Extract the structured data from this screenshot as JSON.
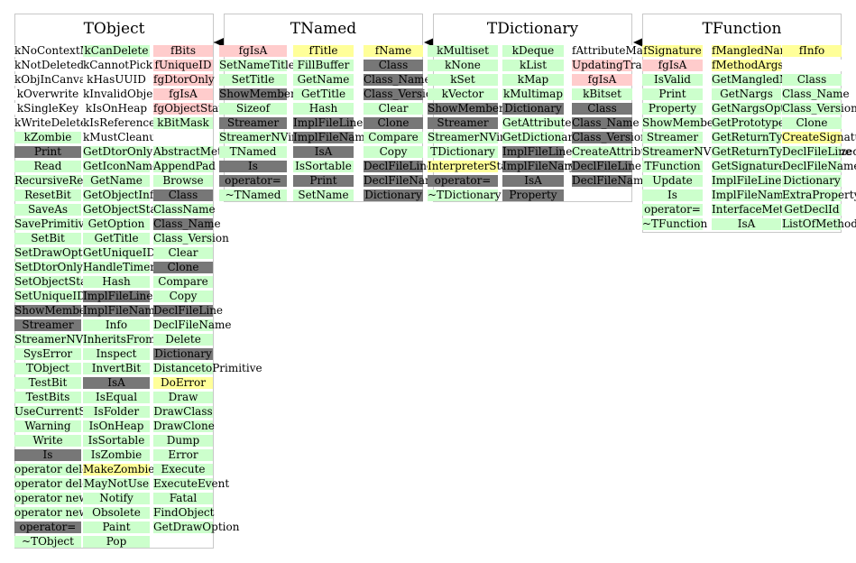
{
  "palette": {
    "method": "#ccffcc",
    "static": "#777777",
    "member": "#ffcccc",
    "pointer": "#ffff99"
  },
  "classes": [
    {
      "title": "TObject",
      "columns": [
        {
          "items": [
            [
              "kNoContextMenu",
              "w"
            ],
            [
              "kNotDeleted",
              "w"
            ],
            [
              "kObjInCanvas",
              "w"
            ],
            [
              "kOverwrite",
              "w"
            ],
            [
              "kSingleKey",
              "w"
            ],
            [
              "kWriteDelete",
              "w"
            ],
            [
              "kZombie",
              "g"
            ],
            [
              "Print",
              "d"
            ],
            [
              "Read",
              "g"
            ],
            [
              "RecursiveRemove",
              "g"
            ],
            [
              "ResetBit",
              "g"
            ],
            [
              "SaveAs",
              "g"
            ],
            [
              "SavePrimitive",
              "g"
            ],
            [
              "SetBit",
              "g"
            ],
            [
              "SetDrawOption",
              "g"
            ],
            [
              "SetDtorOnly",
              "g"
            ],
            [
              "SetObjectStat",
              "g"
            ],
            [
              "SetUniqueID",
              "g"
            ],
            [
              "ShowMembers",
              "d"
            ],
            [
              "Streamer",
              "d"
            ],
            [
              "StreamerNVirtual",
              "g"
            ],
            [
              "SysError",
              "g"
            ],
            [
              "TObject",
              "g"
            ],
            [
              "TestBit",
              "g"
            ],
            [
              "TestBits",
              "g"
            ],
            [
              "UseCurrentStyle",
              "g"
            ],
            [
              "Warning",
              "g"
            ],
            [
              "Write",
              "g"
            ],
            [
              "Is",
              "d"
            ],
            [
              "operator delete",
              "g"
            ],
            [
              "operator delete[]",
              "g"
            ],
            [
              "operator new",
              "g"
            ],
            [
              "operator new[]",
              "g"
            ],
            [
              "operator=",
              "d"
            ],
            [
              "~TObject",
              "g"
            ]
          ]
        },
        {
          "items": [
            [
              "kCanDelete",
              "g"
            ],
            [
              "kCannotPick",
              "w"
            ],
            [
              "kHasUUID",
              "w"
            ],
            [
              "kInvalidObject",
              "w"
            ],
            [
              "kIsOnHeap",
              "w"
            ],
            [
              "kIsReferenced",
              "w"
            ],
            [
              "kMustCleanup",
              "w"
            ],
            [
              "GetDtorOnly",
              "g"
            ],
            [
              "GetIconName",
              "g"
            ],
            [
              "GetName",
              "g"
            ],
            [
              "GetObjectInfo",
              "g"
            ],
            [
              "GetObjectStat",
              "g"
            ],
            [
              "GetOption",
              "g"
            ],
            [
              "GetTitle",
              "g"
            ],
            [
              "GetUniqueID",
              "g"
            ],
            [
              "HandleTimer",
              "g"
            ],
            [
              "Hash",
              "g"
            ],
            [
              "ImplFileLine",
              "d"
            ],
            [
              "ImplFileName",
              "d"
            ],
            [
              "Info",
              "g"
            ],
            [
              "InheritsFrom",
              "g"
            ],
            [
              "Inspect",
              "g"
            ],
            [
              "InvertBit",
              "g"
            ],
            [
              "IsA",
              "d"
            ],
            [
              "IsEqual",
              "g"
            ],
            [
              "IsFolder",
              "g"
            ],
            [
              "IsOnHeap",
              "g"
            ],
            [
              "IsSortable",
              "g"
            ],
            [
              "IsZombie",
              "g"
            ],
            [
              "MakeZombie",
              "y"
            ],
            [
              "MayNotUse",
              "g"
            ],
            [
              "Notify",
              "g"
            ],
            [
              "Obsolete",
              "g"
            ],
            [
              "Paint",
              "g"
            ],
            [
              "Pop",
              "g"
            ]
          ]
        },
        {
          "items": [
            [
              "fBits",
              "p"
            ],
            [
              "fUniqueID",
              "p"
            ],
            [
              "fgDtorOnly",
              "p"
            ],
            [
              "fgIsA",
              "p"
            ],
            [
              "fgObjectStat",
              "p"
            ],
            [
              "kBitMask",
              "g"
            ],
            [
              "",
              "w"
            ],
            [
              "AbstractMethod",
              "g"
            ],
            [
              "AppendPad",
              "g"
            ],
            [
              "Browse",
              "g"
            ],
            [
              "Class",
              "d"
            ],
            [
              "ClassName",
              "g"
            ],
            [
              "Class_Name",
              "d"
            ],
            [
              "Class_Version",
              "g"
            ],
            [
              "Clear",
              "g"
            ],
            [
              "Clone",
              "d"
            ],
            [
              "Compare",
              "g"
            ],
            [
              "Copy",
              "g"
            ],
            [
              "DeclFileLine",
              "d"
            ],
            [
              "DeclFileName",
              "g"
            ],
            [
              "Delete",
              "g"
            ],
            [
              "Dictionary",
              "d"
            ],
            [
              "DistancetoPrimitive",
              "g"
            ],
            [
              "DoError",
              "y"
            ],
            [
              "Draw",
              "g"
            ],
            [
              "DrawClass",
              "g"
            ],
            [
              "DrawClone",
              "g"
            ],
            [
              "Dump",
              "g"
            ],
            [
              "Error",
              "g"
            ],
            [
              "Execute",
              "g"
            ],
            [
              "ExecuteEvent",
              "g"
            ],
            [
              "Fatal",
              "g"
            ],
            [
              "FindObject",
              "g"
            ],
            [
              "GetDrawOption",
              "g"
            ]
          ]
        }
      ]
    },
    {
      "title": "TNamed",
      "columns": [
        {
          "items": [
            [
              "fgIsA",
              "p"
            ],
            [
              "SetNameTitle",
              "g"
            ],
            [
              "SetTitle",
              "g"
            ],
            [
              "ShowMembers",
              "d"
            ],
            [
              "Sizeof",
              "g"
            ],
            [
              "Streamer",
              "d"
            ],
            [
              "StreamerNVirtual",
              "g"
            ],
            [
              "TNamed",
              "g"
            ],
            [
              "Is",
              "d"
            ],
            [
              "operator=",
              "d"
            ],
            [
              "~TNamed",
              "g"
            ]
          ]
        },
        {
          "items": [
            [
              "fTitle",
              "y"
            ],
            [
              "FillBuffer",
              "g"
            ],
            [
              "GetName",
              "g"
            ],
            [
              "GetTitle",
              "g"
            ],
            [
              "Hash",
              "g"
            ],
            [
              "ImplFileLine",
              "d"
            ],
            [
              "ImplFileName",
              "d"
            ],
            [
              "IsA",
              "d"
            ],
            [
              "IsSortable",
              "g"
            ],
            [
              "Print",
              "d"
            ],
            [
              "SetName",
              "g"
            ]
          ]
        },
        {
          "items": [
            [
              "fName",
              "y"
            ],
            [
              "Class",
              "d"
            ],
            [
              "Class_Name",
              "d"
            ],
            [
              "Class_Version",
              "d"
            ],
            [
              "Clear",
              "g"
            ],
            [
              "Clone",
              "d"
            ],
            [
              "Compare",
              "g"
            ],
            [
              "Copy",
              "g"
            ],
            [
              "DeclFileLine",
              "d"
            ],
            [
              "DeclFileName",
              "d"
            ],
            [
              "Dictionary",
              "d"
            ]
          ]
        }
      ]
    },
    {
      "title": "TDictionary",
      "columns": [
        {
          "items": [
            [
              "kMultiset",
              "g"
            ],
            [
              "kNone",
              "g"
            ],
            [
              "kSet",
              "g"
            ],
            [
              "kVector",
              "g"
            ],
            [
              "ShowMembers",
              "d"
            ],
            [
              "Streamer",
              "d"
            ],
            [
              "StreamerNVirtual",
              "g"
            ],
            [
              "TDictionary",
              "g"
            ],
            [
              "InterpreterStateDictionary",
              "y"
            ],
            [
              "operator=",
              "d"
            ],
            [
              "~TDictionary",
              "g"
            ]
          ]
        },
        {
          "items": [
            [
              "kDeque",
              "g"
            ],
            [
              "kList",
              "g"
            ],
            [
              "kMap",
              "g"
            ],
            [
              "kMultimap",
              "g"
            ],
            [
              "Dictionary",
              "d"
            ],
            [
              "GetAttributeMap",
              "g"
            ],
            [
              "GetDictionary",
              "g"
            ],
            [
              "ImplFileLine",
              "d"
            ],
            [
              "ImplFileName",
              "d"
            ],
            [
              "IsA",
              "d"
            ],
            [
              "Property",
              "d"
            ]
          ]
        },
        {
          "items": [
            [
              "fAttributeMap",
              "w"
            ],
            [
              "UpdatingTransactionCounter",
              "p"
            ],
            [
              "fgIsA",
              "p"
            ],
            [
              "kBitset",
              "g"
            ],
            [
              "Class",
              "d"
            ],
            [
              "Class_Name",
              "d"
            ],
            [
              "Class_Version",
              "d"
            ],
            [
              "CreateAttributeMap",
              "g"
            ],
            [
              "DeclFileLine",
              "d"
            ],
            [
              "DeclFileName",
              "d"
            ]
          ]
        }
      ]
    },
    {
      "title": "TFunction",
      "columns": [
        {
          "items": [
            [
              "fSignature",
              "y"
            ],
            [
              "fgIsA",
              "p"
            ],
            [
              "IsValid",
              "g"
            ],
            [
              "Print",
              "g"
            ],
            [
              "Property",
              "g"
            ],
            [
              "ShowMembers",
              "g"
            ],
            [
              "Streamer",
              "g"
            ],
            [
              "StreamerNVirtual",
              "g"
            ],
            [
              "TFunction",
              "g"
            ],
            [
              "Update",
              "g"
            ],
            [
              "Is",
              "g"
            ],
            [
              "operator=",
              "g"
            ],
            [
              "~TFunction",
              "g"
            ]
          ]
        },
        {
          "items": [
            [
              "fMangledName",
              "y"
            ],
            [
              "fMethodArgs",
              "y"
            ],
            [
              "GetMangledName",
              "g"
            ],
            [
              "GetNargs",
              "g"
            ],
            [
              "GetNargsOpt",
              "g"
            ],
            [
              "GetPrototype",
              "g"
            ],
            [
              "GetReturnTypeName",
              "g"
            ],
            [
              "GetReturnTypeNormalizedName",
              "g"
            ],
            [
              "GetSignature",
              "g"
            ],
            [
              "ImplFileLine",
              "g"
            ],
            [
              "ImplFileName",
              "g"
            ],
            [
              "InterfaceMethod",
              "g"
            ],
            [
              "IsA",
              "g"
            ]
          ]
        },
        {
          "items": [
            [
              "fInfo",
              "y"
            ],
            [
              "",
              "w"
            ],
            [
              "Class",
              "g"
            ],
            [
              "Class_Name",
              "g"
            ],
            [
              "Class_Version",
              "g"
            ],
            [
              "Clone",
              "g"
            ],
            [
              "CreateSignature",
              "y"
            ],
            [
              "DeclFileLine",
              "g"
            ],
            [
              "DeclFileName",
              "g"
            ],
            [
              "Dictionary",
              "g"
            ],
            [
              "ExtraProperty",
              "g"
            ],
            [
              "GetDeclId",
              "g"
            ],
            [
              "ListOfMethodArgs",
              "g"
            ]
          ]
        }
      ]
    }
  ]
}
